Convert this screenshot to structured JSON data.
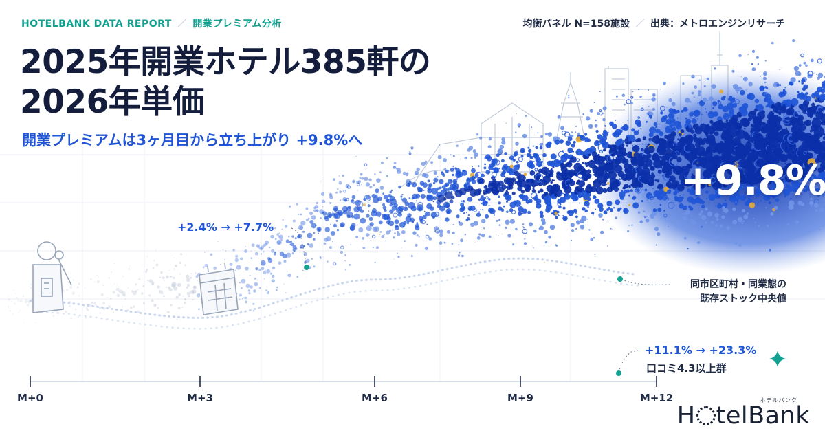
{
  "header": {
    "eyebrow_left": "HOTELBANK DATA REPORT",
    "eyebrow_sep": "／",
    "eyebrow_right": "開業プレミアム分析",
    "source_left": "均衡パネル N=158施設",
    "source_sep": "／",
    "source_right": "出典：メトロエンジンリサーチ",
    "title_line1": "2025年開業ホテル385軒の",
    "title_line2": "2026年単価",
    "subtitle": "開業プレミアムは3ヶ月目から立ち上がり +9.8%へ"
  },
  "kpi": {
    "value": "+9.8%"
  },
  "annotations": {
    "early": "+2.4% → +7.7%",
    "baseline_line1": "同市区町村・同業態の",
    "baseline_line2": "既存ストック中央値",
    "high_review_values": "+11.1% → +23.3%",
    "high_review_group": "口コミ4.3以上群"
  },
  "brand": {
    "logo_pre": "H",
    "logo_post": "telBank",
    "logo_ruby": "ホテルバンク"
  },
  "colors": {
    "accent_blue": "#1f55d6",
    "deep_blue": "#0b2fa8",
    "teal": "#12a090",
    "navy": "#141e3c",
    "gold": "#e0a93a"
  },
  "icons": [
    "hotel-key-icon",
    "calendar-icon",
    "sparkle-icon",
    "skyline-illustration"
  ],
  "chart_data": {
    "type": "line",
    "x": [
      "M+0",
      "M+3",
      "M+6",
      "M+9",
      "M+12"
    ],
    "xlabel": "",
    "ylabel": "",
    "series": [
      {
        "name": "",
        "values": [
          0.0,
          1.2,
          6.5,
          8.3,
          9.8
        ]
      },
      {
        "name": "同市区町村・同業態の既存ストック中央値",
        "values": [
          0.0,
          -1.2,
          1.5,
          3.0,
          1.8
        ]
      }
    ],
    "annotations": [
      {
        "text": "+2.4% → +7.7%",
        "anchor_x": "M+4.5"
      },
      {
        "text": "+11.1% → +23.3%",
        "label": "口コミ4.3以上群",
        "anchor_x": "M+11"
      }
    ],
    "headline": "+9.8%",
    "grid": true,
    "ylim": [
      -4,
      14
    ]
  }
}
